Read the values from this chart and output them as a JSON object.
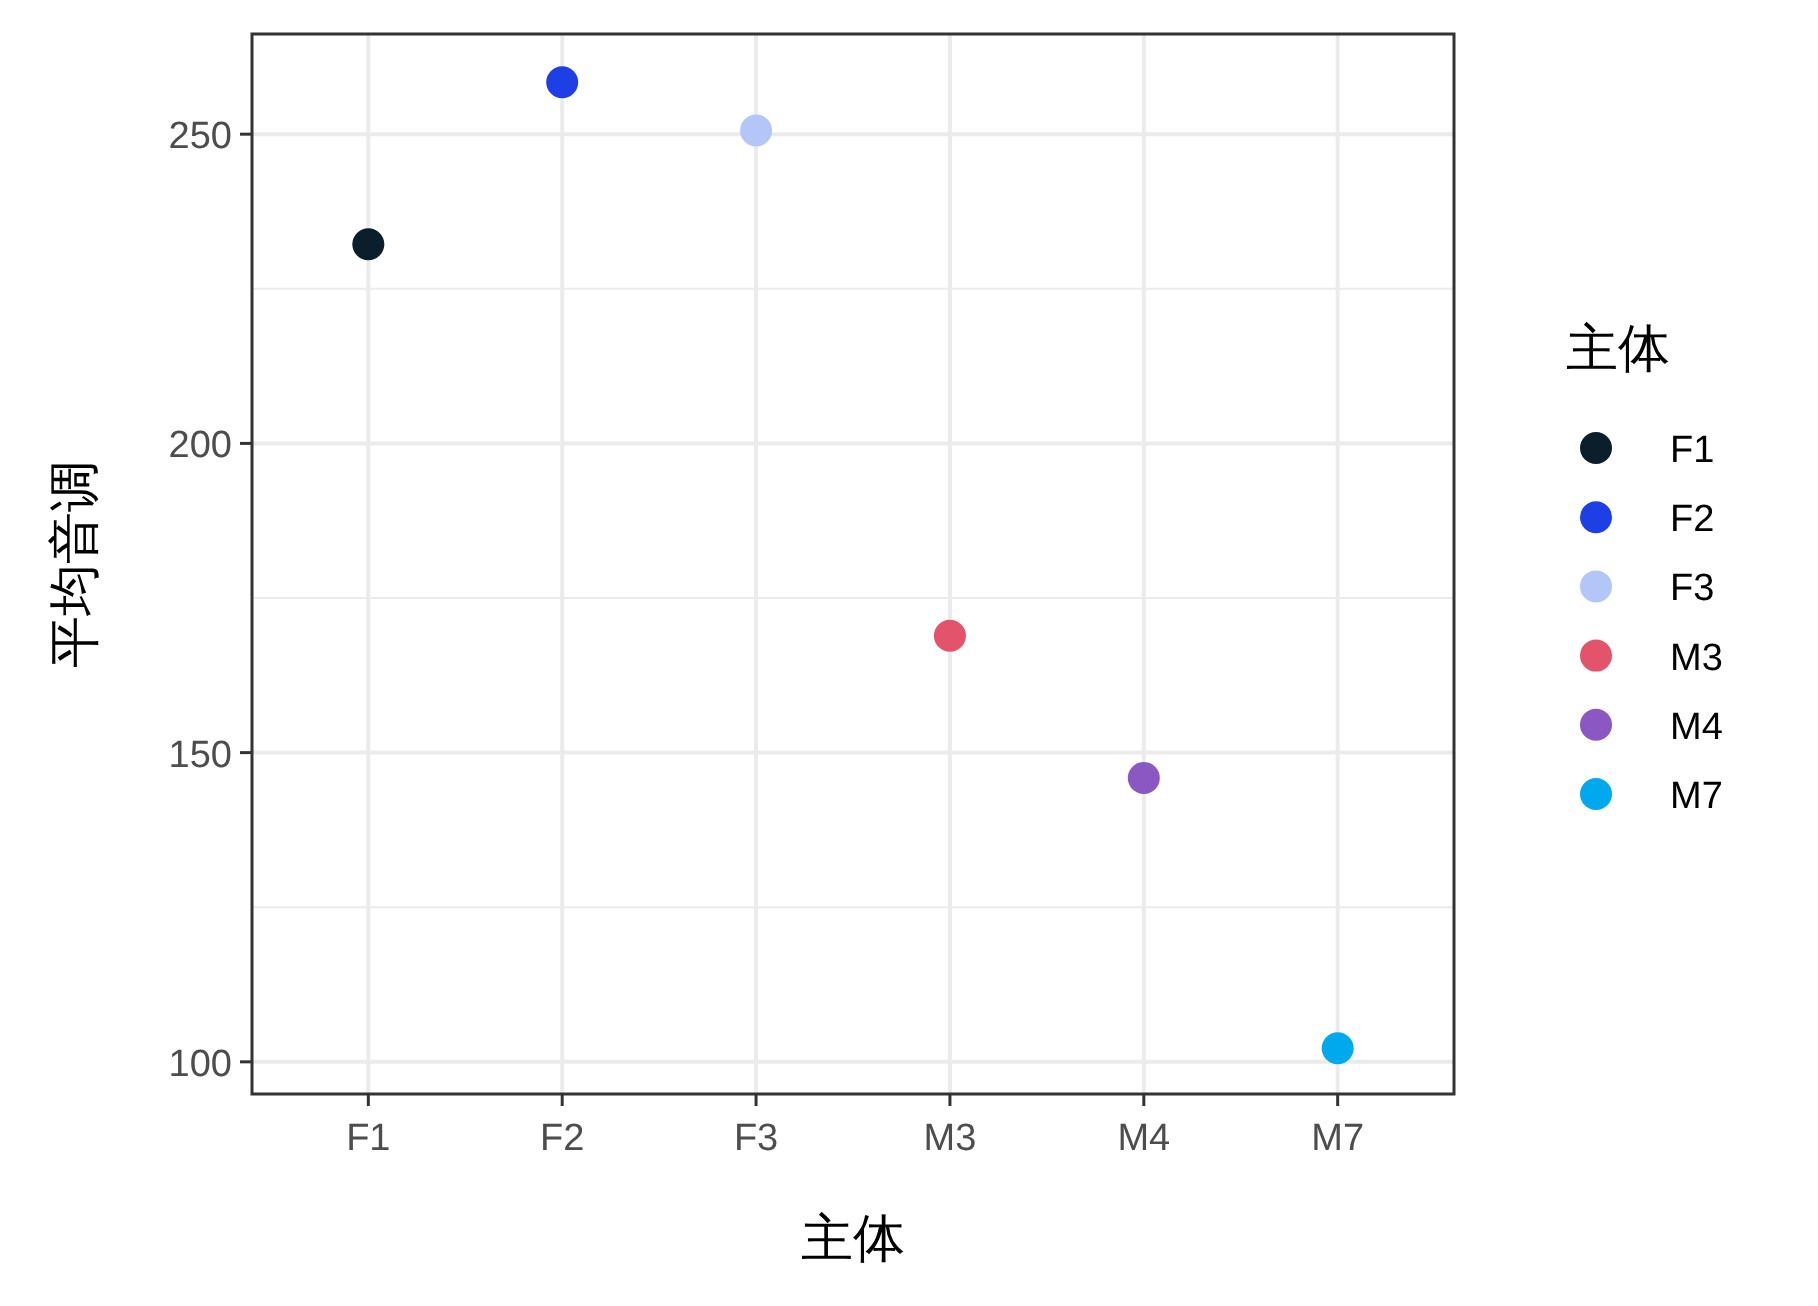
{
  "chart_data": {
    "type": "scatter",
    "xlabel": "主体",
    "ylabel": "平均音调",
    "legend_title": "主体",
    "categories": [
      "F1",
      "F2",
      "F3",
      "M3",
      "M4",
      "M7"
    ],
    "series": [
      {
        "name": "F1",
        "color": "#0b1e2c",
        "values": [
          232.2,
          null,
          null,
          null,
          null,
          null
        ]
      },
      {
        "name": "F2",
        "color": "#1f3fe6",
        "values": [
          null,
          258.4,
          null,
          null,
          null,
          null
        ]
      },
      {
        "name": "F3",
        "color": "#b3c6f7",
        "values": [
          null,
          null,
          250.6,
          null,
          null,
          null
        ]
      },
      {
        "name": "M3",
        "color": "#e3536b",
        "values": [
          null,
          null,
          null,
          168.9,
          null,
          null
        ]
      },
      {
        "name": "M4",
        "color": "#8b57c2",
        "values": [
          null,
          null,
          null,
          null,
          145.9,
          null
        ]
      },
      {
        "name": "M7",
        "color": "#00a9ee",
        "values": [
          null,
          null,
          null,
          null,
          null,
          102.2
        ]
      }
    ],
    "ylim": [
      94.8,
      266.2
    ],
    "yticks": [
      100,
      {
        "value": 125,
        "label": null
      },
      150,
      {
        "value": 175,
        "label": null
      },
      200,
      {
        "value": 225,
        "label": null
      },
      250
    ],
    "grid": true,
    "legend": "right",
    "marker": "circle"
  }
}
